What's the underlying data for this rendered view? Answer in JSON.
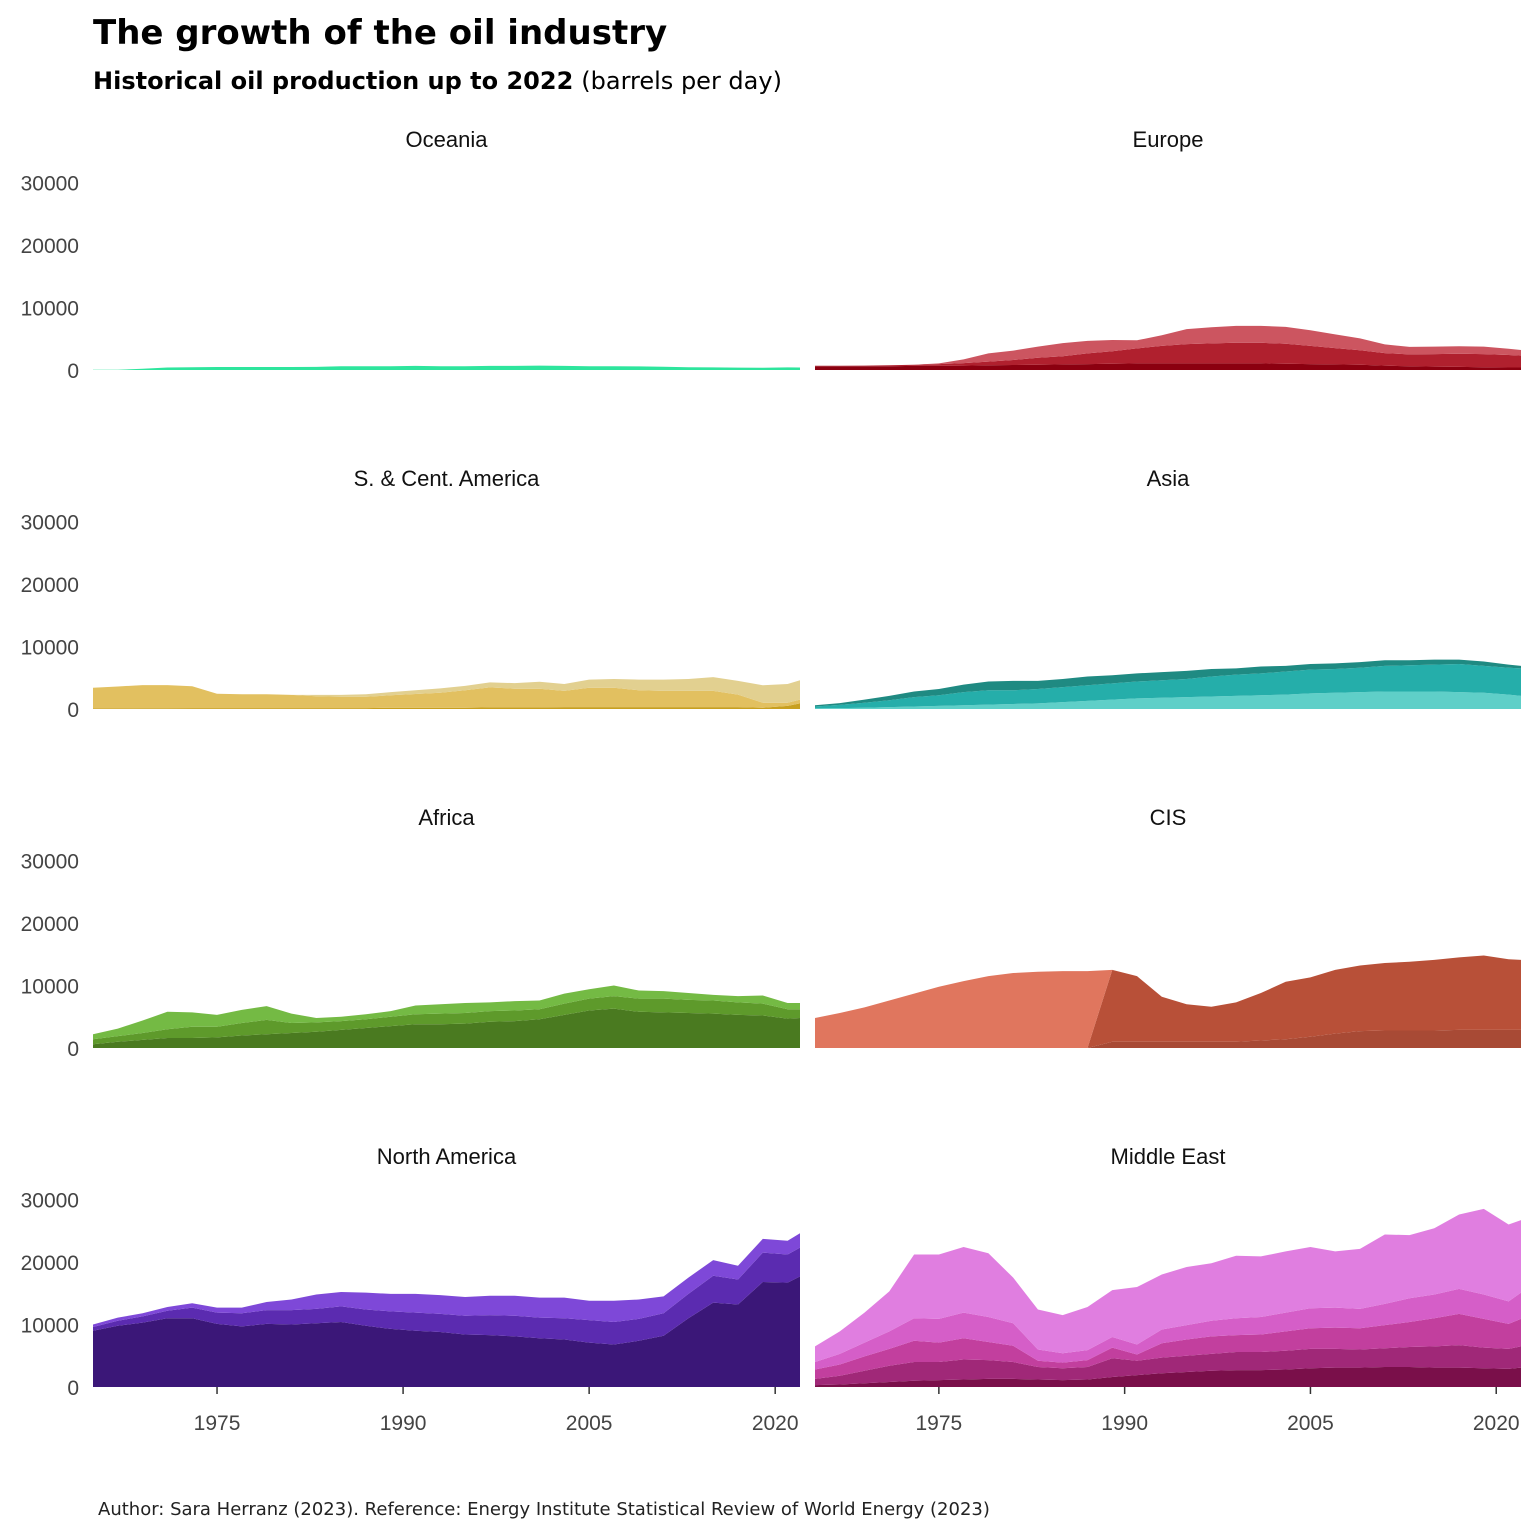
{
  "title": "The growth of the oil industry",
  "subtitle_bold": "Historical oil production up to 2022",
  "subtitle_unit": "(barrels per day)",
  "caption": "Author: Sara Herranz (2023). Reference: Energy Institute Statistical Review of World Energy (2023)",
  "chart_data": {
    "type": "area",
    "stacked": true,
    "facet_order": [
      "Oceania",
      "Europe",
      "S. & Cent. America",
      "Asia",
      "Africa",
      "CIS",
      "North America",
      "Middle East"
    ],
    "xlim": [
      1965,
      2022
    ],
    "ylim": [
      0,
      32000
    ],
    "x_ticks": [
      1975,
      1990,
      2005,
      2020
    ],
    "y_ticks": [
      0,
      10000,
      20000,
      30000
    ],
    "grid": false,
    "legend": "none",
    "x": [
      1965,
      1967,
      1969,
      1971,
      1973,
      1975,
      1977,
      1979,
      1981,
      1983,
      1985,
      1987,
      1989,
      1991,
      1993,
      1995,
      1997,
      1999,
      2001,
      2003,
      2005,
      2007,
      2009,
      2011,
      2013,
      2015,
      2017,
      2019,
      2021,
      2022
    ],
    "panels": [
      {
        "name": "Oceania",
        "series": [
          {
            "color": "#2ee59d",
            "values": [
              30,
              50,
              200,
              400,
              450,
              480,
              480,
              480,
              480,
              500,
              600,
              600,
              600,
              650,
              600,
              600,
              650,
              650,
              700,
              650,
              600,
              600,
              580,
              520,
              450,
              420,
              380,
              350,
              420,
              400
            ]
          }
        ]
      },
      {
        "name": "Europe",
        "series": [
          {
            "color": "#8b0010",
            "values": [
              600,
              600,
              600,
              600,
              650,
              650,
              700,
              750,
              800,
              850,
              900,
              950,
              1000,
              1050,
              1050,
              1050,
              1050,
              1050,
              1050,
              1000,
              950,
              900,
              850,
              700,
              600,
              550,
              500,
              450,
              400,
              400
            ]
          },
          {
            "color": "#b0202e",
            "values": [
              80,
              90,
              100,
              150,
              200,
              300,
              400,
              600,
              800,
              1100,
              1300,
              1700,
              2000,
              2400,
              2800,
              3100,
              3200,
              3300,
              3300,
              3200,
              2900,
              2600,
              2300,
              2000,
              1900,
              2000,
              2100,
              2100,
              2000,
              1900
            ]
          },
          {
            "color": "#cc5560",
            "values": [
              0,
              0,
              0,
              0,
              0,
              100,
              600,
              1300,
              1500,
              1800,
              2100,
              2000,
              1800,
              1300,
              1700,
              2400,
              2600,
              2700,
              2700,
              2700,
              2500,
              2200,
              1900,
              1400,
              1200,
              1200,
              1200,
              1200,
              1000,
              900
            ]
          }
        ]
      },
      {
        "name": "S. & Cent. America",
        "series": [
          {
            "color": "#c8a020",
            "values": [
              100,
              100,
              120,
              120,
              150,
              150,
              150,
              150,
              150,
              150,
              150,
              150,
              200,
              200,
              200,
              200,
              250,
              250,
              250,
              300,
              300,
              300,
              300,
              300,
              300,
              300,
              300,
              200,
              500,
              900
            ]
          },
          {
            "color": "#e2c060",
            "values": [
              3300,
              3500,
              3700,
              3700,
              3500,
              2300,
              2200,
              2200,
              2100,
              1900,
              1800,
              1800,
              2000,
              2200,
              2400,
              2800,
              3200,
              3000,
              3000,
              2600,
              3100,
              3100,
              2700,
              2600,
              2600,
              2600,
              2000,
              800,
              500,
              600
            ]
          },
          {
            "color": "#e2d090",
            "values": [
              0,
              0,
              0,
              0,
              0,
              0,
              0,
              0,
              0,
              200,
              300,
              400,
              500,
              600,
              700,
              700,
              800,
              900,
              1100,
              1100,
              1300,
              1400,
              1700,
              1800,
              1900,
              2200,
              2200,
              2800,
              3000,
              3100
            ]
          }
        ]
      },
      {
        "name": "Asia",
        "series": [
          {
            "color": "#5fcfc8",
            "values": [
              100,
              150,
              200,
              300,
              400,
              500,
              600,
              700,
              800,
              900,
              1100,
              1300,
              1500,
              1700,
              1800,
              1900,
              2000,
              2100,
              2200,
              2300,
              2500,
              2600,
              2700,
              2800,
              2800,
              2800,
              2700,
              2600,
              2300,
              2100
            ]
          },
          {
            "color": "#25aeaa",
            "values": [
              300,
              500,
              800,
              1100,
              1500,
              1700,
              2100,
              2300,
              2200,
              2300,
              2400,
              2500,
              2600,
              2700,
              2800,
              2900,
              3200,
              3400,
              3500,
              3700,
              3800,
              3800,
              3900,
              4100,
              4200,
              4300,
              4500,
              4300,
              4300,
              4400
            ]
          },
          {
            "color": "#1f8a82",
            "values": [
              200,
              300,
              500,
              700,
              900,
              1000,
              1200,
              1400,
              1500,
              1300,
              1300,
              1400,
              1300,
              1300,
              1300,
              1300,
              1200,
              1000,
              1100,
              900,
              900,
              900,
              900,
              900,
              800,
              800,
              700,
              700,
              500,
              400
            ]
          }
        ]
      },
      {
        "name": "Africa",
        "series": [
          {
            "color": "#4a7a20",
            "values": [
              600,
              1000,
              1300,
              1600,
              1600,
              1700,
              2000,
              2200,
              2400,
              2600,
              2900,
              3200,
              3500,
              3800,
              3800,
              3900,
              4200,
              4300,
              4600,
              5300,
              6000,
              6300,
              5800,
              5700,
              5600,
              5500,
              5300,
              5200,
              4700,
              4800
            ]
          },
          {
            "color": "#5e9a2b",
            "values": [
              800,
              900,
              1100,
              1400,
              1800,
              1700,
              2000,
              2300,
              1600,
              1500,
              1400,
              1400,
              1500,
              1600,
              1700,
              1700,
              1700,
              1700,
              1600,
              1800,
              1900,
              2000,
              2100,
              2200,
              2100,
              2100,
              2000,
              1900,
              1500,
              1400
            ]
          },
          {
            "color": "#74ba44",
            "values": [
              800,
              1200,
              2000,
              2800,
              2300,
              1900,
              2100,
              2200,
              1500,
              700,
              700,
              800,
              900,
              1400,
              1500,
              1600,
              1400,
              1500,
              1400,
              1600,
              1500,
              1700,
              1300,
              1200,
              1100,
              900,
              1000,
              1300,
              1000,
              1000
            ]
          }
        ]
      },
      {
        "name": "CIS",
        "series": [
          {
            "color": "#a84a35",
            "values": [
              0,
              0,
              0,
              0,
              0,
              0,
              0,
              0,
              0,
              0,
              0,
              0,
              1000,
              1000,
              1000,
              1000,
              1000,
              1000,
              1200,
              1400,
              1800,
              2300,
              2700,
              2800,
              2800,
              2800,
              2900,
              2900,
              2900,
              2900
            ]
          },
          {
            "color": "#b85038",
            "values": [
              0,
              0,
              0,
              0,
              0,
              0,
              0,
              0,
              0,
              0,
              0,
              0,
              11500,
              10500,
              7200,
              6000,
              5600,
              6300,
              7600,
              9200,
              9500,
              10200,
              10500,
              10800,
              11000,
              11300,
              11600,
              11900,
              11300,
              11200
            ]
          },
          {
            "color": "#e0765e",
            "values": [
              4800,
              5600,
              6500,
              7600,
              8700,
              9800,
              10700,
              11500,
              12000,
              12200,
              12300,
              12300,
              0,
              0,
              0,
              0,
              0,
              0,
              0,
              0,
              0,
              0,
              0,
              0,
              0,
              0,
              0,
              0,
              0,
              0
            ]
          }
        ]
      },
      {
        "name": "North America",
        "series": [
          {
            "color": "#3b1778",
            "values": [
              9000,
              9800,
              10300,
              11000,
              11000,
              10100,
              9700,
              10100,
              10000,
              10200,
              10400,
              9800,
              9300,
              9000,
              8800,
              8400,
              8300,
              8100,
              7800,
              7600,
              7100,
              6800,
              7400,
              8200,
              11000,
              13500,
              13200,
              16800,
              16700,
              17700
            ]
          },
          {
            "color": "#5b2bb0",
            "values": [
              600,
              800,
              1000,
              1200,
              1700,
              1800,
              2100,
              2200,
              2300,
              2300,
              2500,
              2600,
              2800,
              2900,
              2900,
              3000,
              3200,
              3300,
              3300,
              3400,
              3600,
              3600,
              3500,
              3600,
              3900,
              4300,
              4000,
              4700,
              4500,
              4600
            ]
          },
          {
            "color": "#7e48d8",
            "values": [
              400,
              500,
              500,
              600,
              700,
              800,
              900,
              1300,
              1700,
              2300,
              2300,
              2700,
              2800,
              3000,
              3000,
              3000,
              3100,
              3200,
              3200,
              3300,
              3100,
              3400,
              3100,
              2700,
              2600,
              2500,
              2200,
              2200,
              2200,
              2300
            ]
          }
        ]
      },
      {
        "name": "Middle East",
        "series": [
          {
            "color": "#7a0f4a",
            "values": [
              300,
              400,
              600,
              800,
              1000,
              1100,
              1200,
              1300,
              1300,
              1200,
              1100,
              1200,
              1600,
              1900,
              2200,
              2400,
              2600,
              2700,
              2700,
              2800,
              3000,
              3100,
              3100,
              3200,
              3200,
              3100,
              3100,
              3000,
              2900,
              3100
            ]
          },
          {
            "color": "#a02878",
            "values": [
              1000,
              1400,
              2000,
              2600,
              3000,
              2900,
              3200,
              3000,
              2700,
              2000,
              1900,
              2000,
              3000,
              2300,
              2500,
              2600,
              2700,
              2900,
              2900,
              3000,
              3100,
              3000,
              2900,
              3000,
              3200,
              3400,
              3600,
              3300,
              3200,
              3400
            ]
          },
          {
            "color": "#c23f9e",
            "values": [
              1500,
              1800,
              2300,
              2700,
              3400,
              3100,
              3400,
              2900,
              2600,
              1000,
              900,
              1100,
              1700,
              1000,
              2300,
              2600,
              2800,
              2700,
              2800,
              3100,
              3300,
              3400,
              3400,
              3700,
              4000,
              4500,
              5000,
              4600,
              4000,
              4400
            ]
          },
          {
            "color": "#d55ec8",
            "values": [
              1200,
              1700,
              2200,
              2800,
              3600,
              3800,
              4100,
              4000,
              3600,
              1800,
              1500,
              1600,
              1700,
              1600,
              2200,
              2300,
              2500,
              2700,
              2800,
              3000,
              3200,
              3200,
              3100,
              3400,
              3800,
              3800,
              4000,
              3900,
              3600,
              4200
            ]
          },
          {
            "color": "#e07ee0",
            "values": [
              2500,
              3600,
              4800,
              6400,
              10200,
              10300,
              10500,
              10200,
              7300,
              6400,
              6100,
              6900,
              7500,
              9200,
              8800,
              9300,
              9200,
              10000,
              9700,
              9800,
              9800,
              9000,
              9600,
              11100,
              10100,
              10600,
              11900,
              13700,
              12300,
              11600
            ]
          }
        ]
      }
    ]
  }
}
